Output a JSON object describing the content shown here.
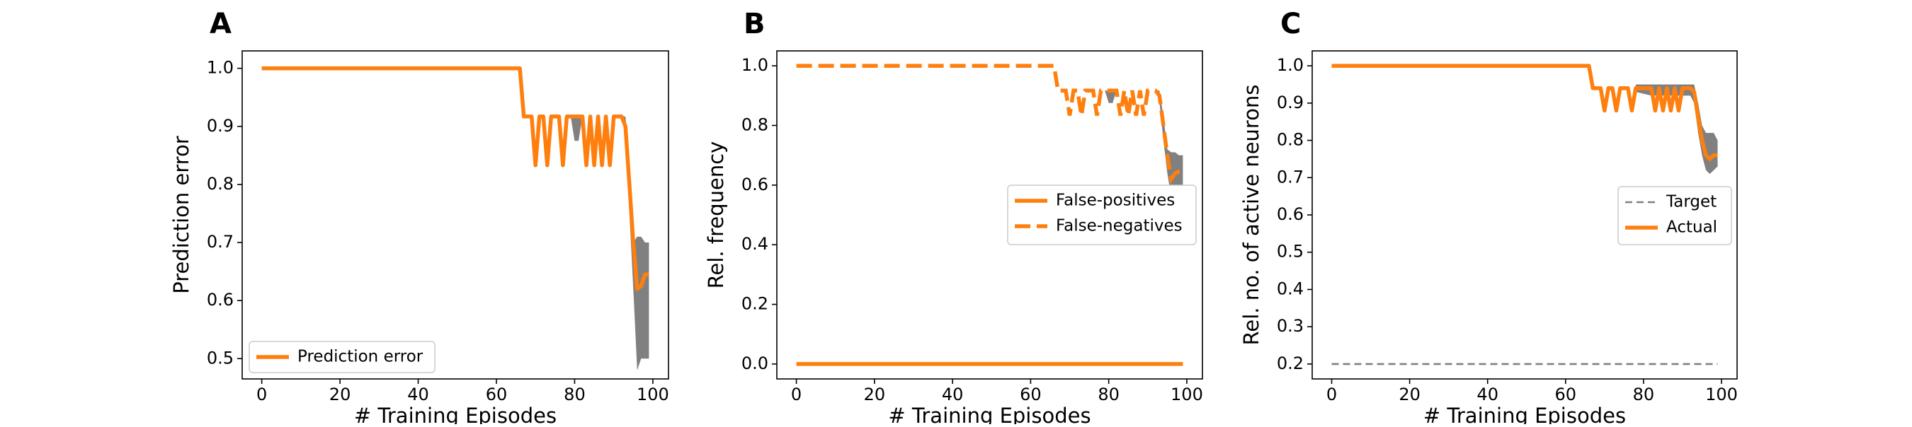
{
  "figure": {
    "panels": [
      "A",
      "B",
      "C"
    ]
  },
  "chart_data": [
    {
      "panel": "A",
      "type": "line",
      "xlabel": "# Training Episodes",
      "ylabel": "Prediction error",
      "xlim": [
        -5,
        104
      ],
      "ylim": [
        0.465,
        1.03
      ],
      "xticks": [
        0,
        20,
        40,
        60,
        80,
        100
      ],
      "yticks": [
        0.5,
        0.6,
        0.7,
        0.8,
        0.9,
        1.0
      ],
      "ytick_labels": [
        "0.5",
        "0.6",
        "0.7",
        "0.8",
        "0.9",
        "1.0"
      ],
      "grid": false,
      "legend": {
        "loc": "lower-left",
        "entries": [
          {
            "label": "Prediction error",
            "style": "solid"
          }
        ]
      },
      "series": [
        {
          "name": "Prediction error",
          "color": "#ff7f0e",
          "style": "solid",
          "points": [
            [
              0,
              1.0
            ],
            [
              66,
              1.0
            ],
            [
              67,
              0.917
            ],
            [
              69,
              0.917
            ],
            [
              70,
              0.833
            ],
            [
              71,
              0.917
            ],
            [
              72,
              0.917
            ],
            [
              73,
              0.833
            ],
            [
              74,
              0.917
            ],
            [
              76,
              0.917
            ],
            [
              77,
              0.833
            ],
            [
              78,
              0.917
            ],
            [
              80,
              0.917
            ],
            [
              81,
              0.917
            ],
            [
              82,
              0.917
            ],
            [
              83,
              0.833
            ],
            [
              84,
              0.917
            ],
            [
              85,
              0.833
            ],
            [
              86,
              0.917
            ],
            [
              87,
              0.833
            ],
            [
              88,
              0.917
            ],
            [
              89,
              0.833
            ],
            [
              90,
              0.917
            ],
            [
              92,
              0.917
            ],
            [
              93,
              0.9
            ],
            [
              94,
              0.8
            ],
            [
              95,
              0.7
            ],
            [
              96,
              0.62
            ],
            [
              97,
              0.625
            ],
            [
              98,
              0.645
            ],
            [
              99,
              0.645
            ]
          ]
        }
      ],
      "bands": [
        {
          "color": "#808080",
          "upper": [
            [
              78,
              0.917
            ],
            [
              82,
              0.917
            ],
            [
              92,
              0.917
            ],
            [
              93,
              0.917
            ],
            [
              94,
              0.83
            ],
            [
              95,
              0.7
            ],
            [
              96,
              0.71
            ],
            [
              97,
              0.71
            ],
            [
              98,
              0.7
            ],
            [
              99,
              0.7
            ]
          ],
          "lower": [
            [
              99,
              0.5
            ],
            [
              98,
              0.5
            ],
            [
              97,
              0.5
            ],
            [
              96,
              0.48
            ],
            [
              95,
              0.62
            ],
            [
              94,
              0.75
            ],
            [
              93,
              0.88
            ],
            [
              92,
              0.917
            ],
            [
              82,
              0.917
            ],
            [
              81,
              0.875
            ],
            [
              80,
              0.875
            ],
            [
              79,
              0.917
            ],
            [
              78,
              0.917
            ]
          ]
        }
      ]
    },
    {
      "panel": "B",
      "type": "line",
      "xlabel": "# Training Episodes",
      "ylabel": "Rel. frequency",
      "xlim": [
        -5,
        104
      ],
      "ylim": [
        -0.05,
        1.05
      ],
      "xticks": [
        0,
        20,
        40,
        60,
        80,
        100
      ],
      "yticks": [
        0.0,
        0.2,
        0.4,
        0.6,
        0.8,
        1.0
      ],
      "ytick_labels": [
        "0.0",
        "0.2",
        "0.4",
        "0.6",
        "0.8",
        "1.0"
      ],
      "grid": false,
      "legend": {
        "loc": "center-right",
        "entries": [
          {
            "label": "False-positives",
            "style": "solid"
          },
          {
            "label": "False-negatives",
            "style": "dashed"
          }
        ]
      },
      "series": [
        {
          "name": "False-positives",
          "color": "#ff7f0e",
          "style": "solid",
          "points": [
            [
              0,
              0.0
            ],
            [
              99,
              0.0
            ]
          ]
        },
        {
          "name": "False-negatives",
          "color": "#ff7f0e",
          "style": "dashed",
          "points": [
            [
              0,
              1.0
            ],
            [
              66,
              1.0
            ],
            [
              67,
              0.917
            ],
            [
              69,
              0.917
            ],
            [
              70,
              0.833
            ],
            [
              71,
              0.917
            ],
            [
              72,
              0.917
            ],
            [
              73,
              0.833
            ],
            [
              74,
              0.917
            ],
            [
              76,
              0.917
            ],
            [
              77,
              0.833
            ],
            [
              78,
              0.917
            ],
            [
              82,
              0.917
            ],
            [
              83,
              0.833
            ],
            [
              84,
              0.917
            ],
            [
              85,
              0.833
            ],
            [
              86,
              0.917
            ],
            [
              87,
              0.833
            ],
            [
              88,
              0.917
            ],
            [
              89,
              0.833
            ],
            [
              90,
              0.917
            ],
            [
              92,
              0.917
            ],
            [
              93,
              0.9
            ],
            [
              94,
              0.8
            ],
            [
              95,
              0.7
            ],
            [
              96,
              0.62
            ],
            [
              97,
              0.64
            ],
            [
              98,
              0.645
            ],
            [
              99,
              0.645
            ]
          ]
        }
      ],
      "bands": [
        {
          "color": "#808080",
          "upper": [
            [
              78,
              0.917
            ],
            [
              82,
              0.917
            ],
            [
              92,
              0.917
            ],
            [
              93,
              0.917
            ],
            [
              94,
              0.83
            ],
            [
              95,
              0.72
            ],
            [
              96,
              0.71
            ],
            [
              97,
              0.71
            ],
            [
              98,
              0.7
            ],
            [
              99,
              0.7
            ]
          ],
          "lower": [
            [
              99,
              0.5
            ],
            [
              98,
              0.5
            ],
            [
              97,
              0.5
            ],
            [
              96,
              0.56
            ],
            [
              95,
              0.64
            ],
            [
              94,
              0.75
            ],
            [
              93,
              0.88
            ],
            [
              92,
              0.917
            ],
            [
              82,
              0.917
            ],
            [
              81,
              0.875
            ],
            [
              80,
              0.875
            ],
            [
              79,
              0.917
            ],
            [
              78,
              0.917
            ]
          ]
        }
      ]
    },
    {
      "panel": "C",
      "type": "line",
      "xlabel": "# Training Episodes",
      "ylabel": "Rel. no. of active neurons",
      "xlim": [
        -5,
        104
      ],
      "ylim": [
        0.16,
        1.04
      ],
      "xticks": [
        0,
        20,
        40,
        60,
        80,
        100
      ],
      "yticks": [
        0.2,
        0.3,
        0.4,
        0.5,
        0.6,
        0.7,
        0.8,
        0.9,
        1.0
      ],
      "ytick_labels": [
        "0.2",
        "0.3",
        "0.4",
        "0.5",
        "0.6",
        "0.7",
        "0.8",
        "0.9",
        "1.0"
      ],
      "grid": false,
      "legend": {
        "loc": "center-right",
        "entries": [
          {
            "label": "Target",
            "style": "dashed-gray"
          },
          {
            "label": "Actual",
            "style": "solid"
          }
        ]
      },
      "series": [
        {
          "name": "Target",
          "color": "#808080",
          "style": "dashed-gray",
          "points": [
            [
              0,
              0.2
            ],
            [
              99,
              0.2
            ]
          ]
        },
        {
          "name": "Actual",
          "color": "#ff7f0e",
          "style": "solid",
          "points": [
            [
              0,
              1.0
            ],
            [
              66,
              1.0
            ],
            [
              67,
              0.94
            ],
            [
              69,
              0.94
            ],
            [
              70,
              0.88
            ],
            [
              71,
              0.94
            ],
            [
              72,
              0.94
            ],
            [
              73,
              0.88
            ],
            [
              74,
              0.94
            ],
            [
              76,
              0.94
            ],
            [
              77,
              0.88
            ],
            [
              78,
              0.94
            ],
            [
              82,
              0.94
            ],
            [
              83,
              0.88
            ],
            [
              84,
              0.94
            ],
            [
              85,
              0.88
            ],
            [
              86,
              0.94
            ],
            [
              87,
              0.88
            ],
            [
              88,
              0.94
            ],
            [
              89,
              0.88
            ],
            [
              90,
              0.94
            ],
            [
              92,
              0.94
            ],
            [
              93,
              0.93
            ],
            [
              94,
              0.86
            ],
            [
              95,
              0.8
            ],
            [
              96,
              0.76
            ],
            [
              97,
              0.75
            ],
            [
              98,
              0.76
            ],
            [
              99,
              0.76
            ]
          ]
        }
      ],
      "bands": [
        {
          "color": "#808080",
          "upper": [
            [
              78,
              0.95
            ],
            [
              82,
              0.95
            ],
            [
              92,
              0.95
            ],
            [
              93,
              0.95
            ],
            [
              94,
              0.9
            ],
            [
              95,
              0.84
            ],
            [
              96,
              0.82
            ],
            [
              97,
              0.82
            ],
            [
              98,
              0.82
            ],
            [
              99,
              0.8
            ]
          ],
          "lower": [
            [
              99,
              0.73
            ],
            [
              98,
              0.72
            ],
            [
              97,
              0.71
            ],
            [
              96,
              0.72
            ],
            [
              95,
              0.76
            ],
            [
              94,
              0.82
            ],
            [
              93,
              0.9
            ],
            [
              92,
              0.92
            ],
            [
              82,
              0.92
            ],
            [
              78,
              0.93
            ]
          ]
        }
      ]
    }
  ]
}
